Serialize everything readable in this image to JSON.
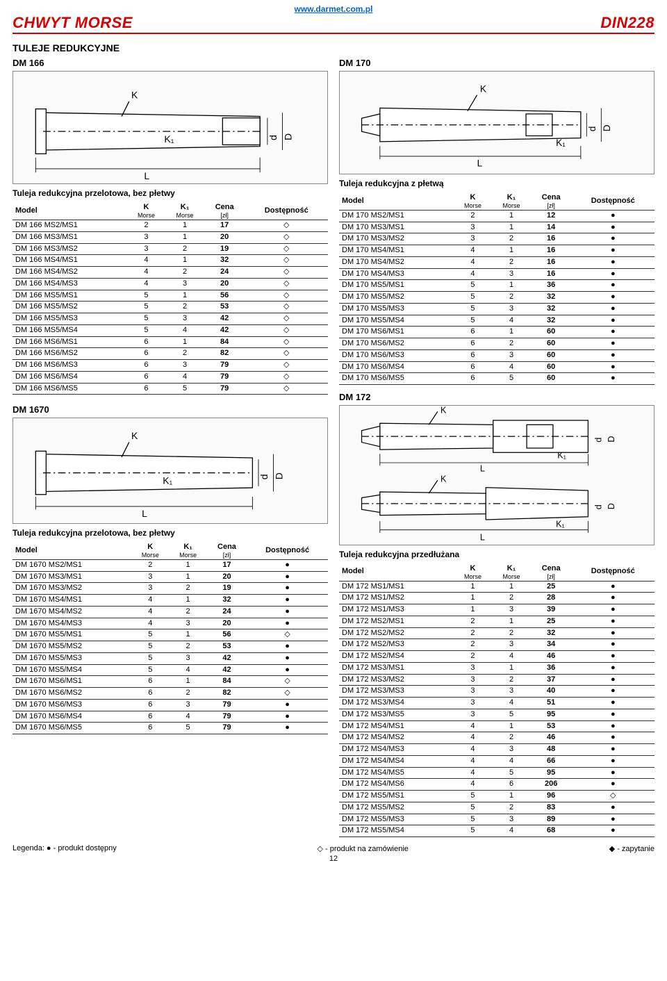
{
  "header": {
    "url": "www.darmet.com.pl",
    "title_left": "CHWYT MORSE",
    "title_right": "DIN228"
  },
  "section_title": "TULEJE REDUKCYJNE",
  "columns_header": {
    "model": "Model",
    "k": "K",
    "k_sub": "Morse",
    "k1": "K₁",
    "k1_sub": "Morse",
    "cena": "Cena",
    "cena_sub": "[zł]",
    "dost": "Dostępność"
  },
  "diagrams": {
    "labels": {
      "K": "K",
      "K1": "K₁",
      "L": "L",
      "d": "d",
      "D": "D"
    }
  },
  "dm166": {
    "title": "DM 166",
    "caption": "Tuleja redukcyjna przelotowa, bez płetwy",
    "rows": [
      [
        "DM 166 MS2/MS1",
        "2",
        "1",
        "17",
        "◇"
      ],
      [
        "DM 166 MS3/MS1",
        "3",
        "1",
        "20",
        "◇"
      ],
      [
        "DM 166 MS3/MS2",
        "3",
        "2",
        "19",
        "◇"
      ],
      [
        "DM 166 MS4/MS1",
        "4",
        "1",
        "32",
        "◇"
      ],
      [
        "DM 166 MS4/MS2",
        "4",
        "2",
        "24",
        "◇"
      ],
      [
        "DM 166 MS4/MS3",
        "4",
        "3",
        "20",
        "◇"
      ],
      [
        "DM 166 MS5/MS1",
        "5",
        "1",
        "56",
        "◇"
      ],
      [
        "DM 166 MS5/MS2",
        "5",
        "2",
        "53",
        "◇"
      ],
      [
        "DM 166 MS5/MS3",
        "5",
        "3",
        "42",
        "◇"
      ],
      [
        "DM 166 MS5/MS4",
        "5",
        "4",
        "42",
        "◇"
      ],
      [
        "DM 166 MS6/MS1",
        "6",
        "1",
        "84",
        "◇"
      ],
      [
        "DM 166 MS6/MS2",
        "6",
        "2",
        "82",
        "◇"
      ],
      [
        "DM 166 MS6/MS3",
        "6",
        "3",
        "79",
        "◇"
      ],
      [
        "DM 166 MS6/MS4",
        "6",
        "4",
        "79",
        "◇"
      ],
      [
        "DM 166 MS6/MS5",
        "6",
        "5",
        "79",
        "◇"
      ]
    ]
  },
  "dm1670": {
    "title": "DM 1670",
    "caption": "Tuleja redukcyjna przelotowa, bez płetwy",
    "rows": [
      [
        "DM 1670 MS2/MS1",
        "2",
        "1",
        "17",
        "●"
      ],
      [
        "DM 1670 MS3/MS1",
        "3",
        "1",
        "20",
        "●"
      ],
      [
        "DM 1670 MS3/MS2",
        "3",
        "2",
        "19",
        "●"
      ],
      [
        "DM 1670 MS4/MS1",
        "4",
        "1",
        "32",
        "●"
      ],
      [
        "DM 1670 MS4/MS2",
        "4",
        "2",
        "24",
        "●"
      ],
      [
        "DM 1670 MS4/MS3",
        "4",
        "3",
        "20",
        "●"
      ],
      [
        "DM 1670 MS5/MS1",
        "5",
        "1",
        "56",
        "◇"
      ],
      [
        "DM 1670 MS5/MS2",
        "5",
        "2",
        "53",
        "●"
      ],
      [
        "DM 1670 MS5/MS3",
        "5",
        "3",
        "42",
        "●"
      ],
      [
        "DM 1670 MS5/MS4",
        "5",
        "4",
        "42",
        "●"
      ],
      [
        "DM 1670 MS6/MS1",
        "6",
        "1",
        "84",
        "◇"
      ],
      [
        "DM 1670 MS6/MS2",
        "6",
        "2",
        "82",
        "◇"
      ],
      [
        "DM 1670 MS6/MS3",
        "6",
        "3",
        "79",
        "●"
      ],
      [
        "DM 1670 MS6/MS4",
        "6",
        "4",
        "79",
        "●"
      ],
      [
        "DM 1670 MS6/MS5",
        "6",
        "5",
        "79",
        "●"
      ]
    ]
  },
  "dm170": {
    "title": "DM 170",
    "caption": "Tuleja redukcyjna z płetwą",
    "rows": [
      [
        "DM 170 MS2/MS1",
        "2",
        "1",
        "12",
        "●"
      ],
      [
        "DM 170 MS3/MS1",
        "3",
        "1",
        "14",
        "●"
      ],
      [
        "DM 170 MS3/MS2",
        "3",
        "2",
        "16",
        "●"
      ],
      [
        "DM 170 MS4/MS1",
        "4",
        "1",
        "16",
        "●"
      ],
      [
        "DM 170 MS4/MS2",
        "4",
        "2",
        "16",
        "●"
      ],
      [
        "DM 170 MS4/MS3",
        "4",
        "3",
        "16",
        "●"
      ],
      [
        "DM 170 MS5/MS1",
        "5",
        "1",
        "36",
        "●"
      ],
      [
        "DM 170 MS5/MS2",
        "5",
        "2",
        "32",
        "●"
      ],
      [
        "DM 170 MS5/MS3",
        "5",
        "3",
        "32",
        "●"
      ],
      [
        "DM 170 MS5/MS4",
        "5",
        "4",
        "32",
        "●"
      ],
      [
        "DM 170 MS6/MS1",
        "6",
        "1",
        "60",
        "●"
      ],
      [
        "DM 170 MS6/MS2",
        "6",
        "2",
        "60",
        "●"
      ],
      [
        "DM 170 MS6/MS3",
        "6",
        "3",
        "60",
        "●"
      ],
      [
        "DM 170 MS6/MS4",
        "6",
        "4",
        "60",
        "●"
      ],
      [
        "DM 170 MS6/MS5",
        "6",
        "5",
        "60",
        "●"
      ]
    ]
  },
  "dm172": {
    "title": "DM 172",
    "caption": "Tuleja redukcyjna przedłużana",
    "rows": [
      [
        "DM 172 MS1/MS1",
        "1",
        "1",
        "25",
        "●"
      ],
      [
        "DM 172 MS1/MS2",
        "1",
        "2",
        "28",
        "●"
      ],
      [
        "DM 172 MS1/MS3",
        "1",
        "3",
        "39",
        "●"
      ],
      [
        "DM 172 MS2/MS1",
        "2",
        "1",
        "25",
        "●"
      ],
      [
        "DM 172 MS2/MS2",
        "2",
        "2",
        "32",
        "●"
      ],
      [
        "DM 172 MS2/MS3",
        "2",
        "3",
        "34",
        "●"
      ],
      [
        "DM 172 MS2/MS4",
        "2",
        "4",
        "46",
        "●"
      ],
      [
        "DM 172 MS3/MS1",
        "3",
        "1",
        "36",
        "●"
      ],
      [
        "DM 172 MS3/MS2",
        "3",
        "2",
        "37",
        "●"
      ],
      [
        "DM 172 MS3/MS3",
        "3",
        "3",
        "40",
        "●"
      ],
      [
        "DM 172 MS3/MS4",
        "3",
        "4",
        "51",
        "●"
      ],
      [
        "DM 172 MS3/MS5",
        "3",
        "5",
        "95",
        "●"
      ],
      [
        "DM 172 MS4/MS1",
        "4",
        "1",
        "53",
        "●"
      ],
      [
        "DM 172 MS4/MS2",
        "4",
        "2",
        "46",
        "●"
      ],
      [
        "DM 172 MS4/MS3",
        "4",
        "3",
        "48",
        "●"
      ],
      [
        "DM 172 MS4/MS4",
        "4",
        "4",
        "66",
        "●"
      ],
      [
        "DM 172 MS4/MS5",
        "4",
        "5",
        "95",
        "●"
      ],
      [
        "DM 172 MS4/MS6",
        "4",
        "6",
        "206",
        "●"
      ],
      [
        "DM 172 MS5/MS1",
        "5",
        "1",
        "96",
        "◇"
      ],
      [
        "DM 172 MS5/MS2",
        "5",
        "2",
        "83",
        "●"
      ],
      [
        "DM 172 MS5/MS3",
        "5",
        "3",
        "89",
        "●"
      ],
      [
        "DM 172 MS5/MS4",
        "5",
        "4",
        "68",
        "●"
      ]
    ]
  },
  "legend": {
    "avail": "Legenda: ● - produkt dostępny",
    "order": "◇ - produkt na zamówienie",
    "query": "◆ - zapytanie",
    "page": "12"
  }
}
